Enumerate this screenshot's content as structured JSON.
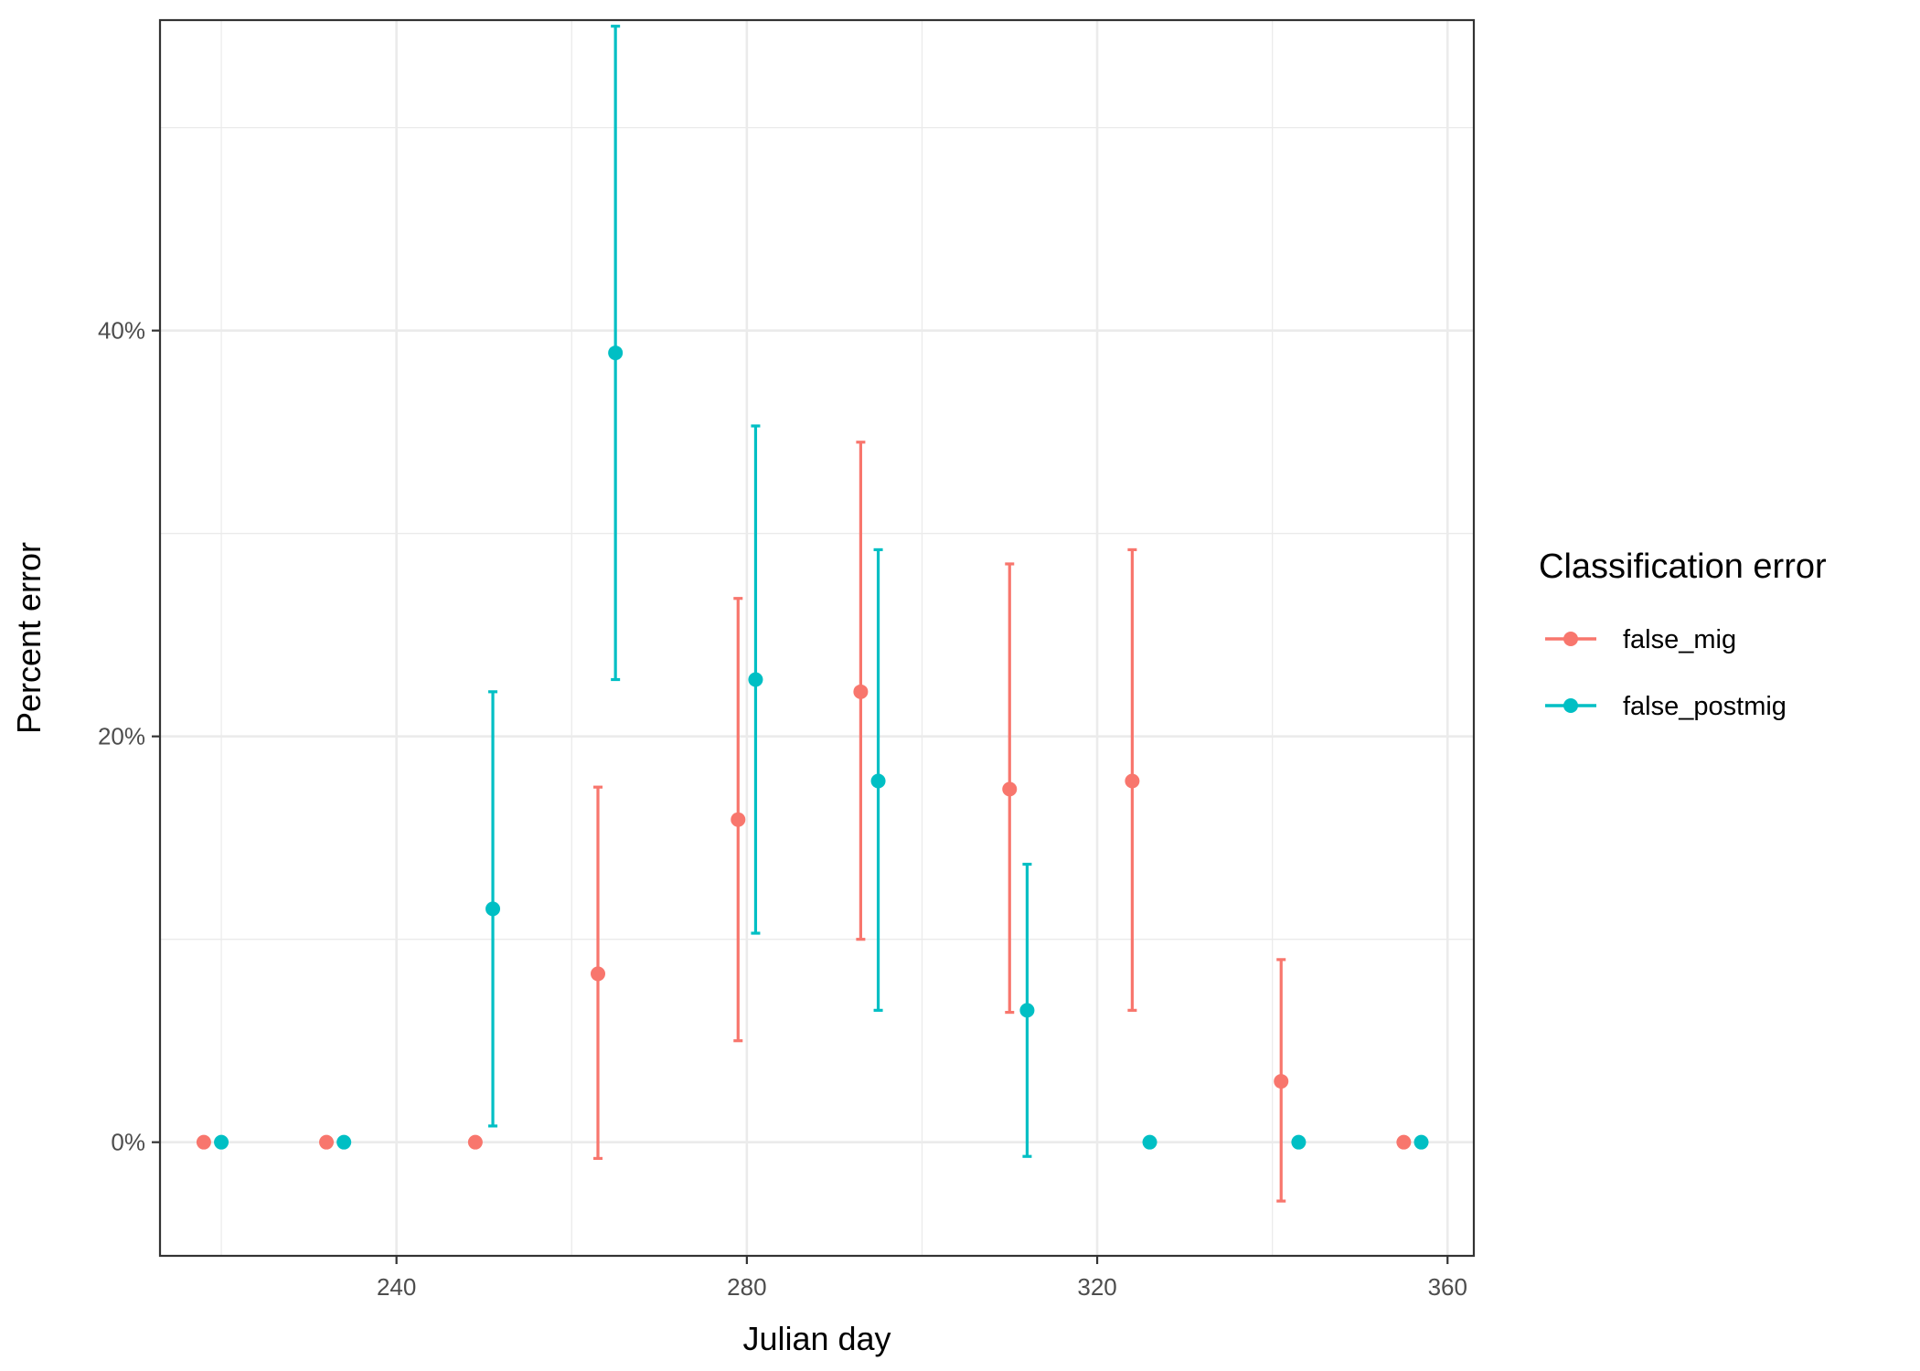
{
  "chart_data": {
    "type": "scatter",
    "subtype": "point-with-errorbars",
    "xlabel": "Julian day",
    "ylabel": "Percent error",
    "xlim": [
      213,
      363
    ],
    "ylim": [
      -5.6,
      55.3
    ],
    "x_ticks": [
      240,
      280,
      320,
      360
    ],
    "x_tick_labels": [
      "240",
      "280",
      "320",
      "360"
    ],
    "x_minor_gridlines": [
      220,
      260,
      300,
      340
    ],
    "y_ticks": [
      0,
      20,
      40
    ],
    "y_tick_labels": [
      "0%",
      "20%",
      "40%"
    ],
    "y_minor_gridlines": [
      10,
      30,
      50
    ],
    "grid": true,
    "legend": {
      "title": "Classification error",
      "position": "right"
    },
    "series": [
      {
        "name": "false_mig",
        "color": "#F8766D",
        "points": [
          {
            "x": 218,
            "y": 0
          },
          {
            "x": 232,
            "y": 0
          },
          {
            "x": 249,
            "y": 0
          },
          {
            "x": 263,
            "y": 8.3,
            "ymin": -0.8,
            "ymax": 17.5
          },
          {
            "x": 279,
            "y": 15.9,
            "ymin": 5.0,
            "ymax": 26.8
          },
          {
            "x": 293,
            "y": 22.2,
            "ymin": 10.0,
            "ymax": 34.5
          },
          {
            "x": 310,
            "y": 17.4,
            "ymin": 6.4,
            "ymax": 28.5
          },
          {
            "x": 324,
            "y": 17.8,
            "ymin": 6.5,
            "ymax": 29.2
          },
          {
            "x": 341,
            "y": 3.0,
            "ymin": -2.9,
            "ymax": 9.0
          },
          {
            "x": 355,
            "y": 0
          }
        ]
      },
      {
        "name": "false_postmig",
        "color": "#00BFC4",
        "points": [
          {
            "x": 220,
            "y": 0
          },
          {
            "x": 234,
            "y": 0
          },
          {
            "x": 251,
            "y": 11.5,
            "ymin": 0.8,
            "ymax": 22.2
          },
          {
            "x": 265,
            "y": 38.9,
            "ymin": 22.8,
            "ymax": 55.0
          },
          {
            "x": 281,
            "y": 22.8,
            "ymin": 10.3,
            "ymax": 35.3
          },
          {
            "x": 295,
            "y": 17.8,
            "ymin": 6.5,
            "ymax": 29.2
          },
          {
            "x": 312,
            "y": 6.5,
            "ymin": -0.7,
            "ymax": 13.7
          },
          {
            "x": 326,
            "y": 0
          },
          {
            "x": 343,
            "y": 0
          },
          {
            "x": 357,
            "y": 0
          }
        ]
      }
    ]
  }
}
